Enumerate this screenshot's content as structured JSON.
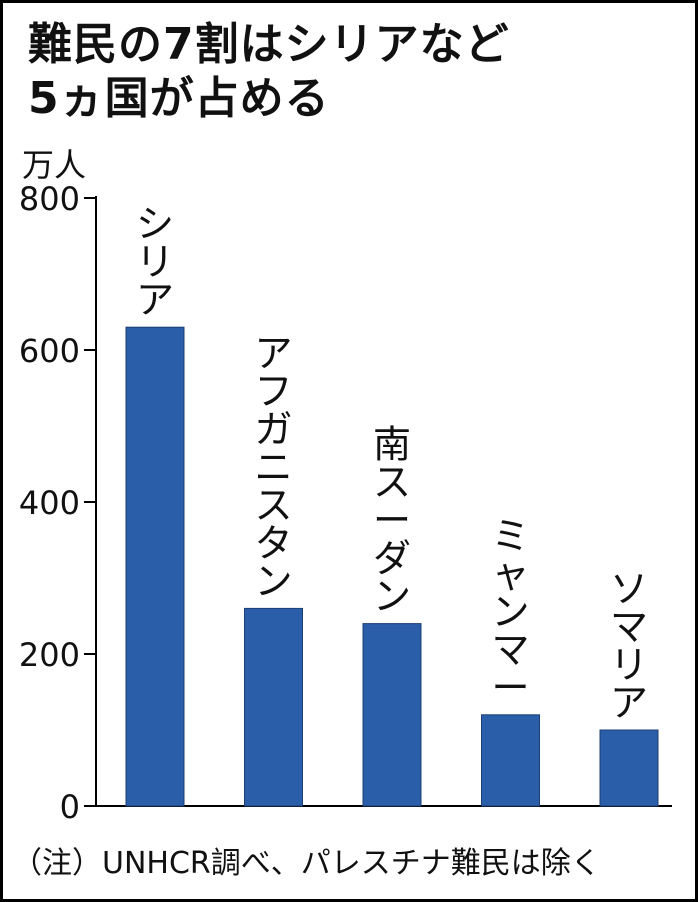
{
  "title_line1": "難民の7割はシリアなど",
  "title_line2": "5ヵ国が占める",
  "unit_label": "万人",
  "note": "（注）UNHCR調べ、パレスチナ難民は除く",
  "colors": {
    "bar": "#2a5ea8",
    "bar_border": "#1b3f73",
    "axis": "#000000"
  },
  "chart_data": {
    "type": "bar",
    "title": "難民の7割はシリアなど5ヵ国が占める",
    "ylabel": "万人",
    "xlabel": "",
    "ylim": [
      0,
      800
    ],
    "yticks": [
      "0",
      "200",
      "400",
      "600",
      "800"
    ],
    "categories": [
      "シリア",
      "アフガニスタン",
      "南スーダン",
      "ミャンマー",
      "ソマリア"
    ],
    "values": [
      630,
      260,
      240,
      120,
      100
    ],
    "category_labels_vertical": true,
    "grid": false
  }
}
